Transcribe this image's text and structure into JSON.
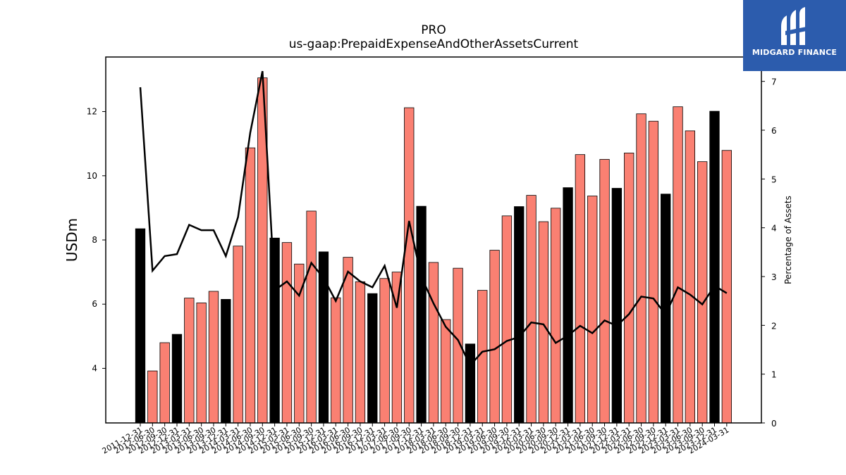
{
  "chart_data": {
    "type": "bar+line",
    "title": "PRO",
    "subtitle": "us-gaap:PrepaidExpenseAndOtherAssetsCurrent",
    "ylabel": "USDm",
    "y2label": "Percentage of Assets",
    "ylim": [
      2.3,
      13.7
    ],
    "y2lim": [
      0,
      7.5
    ],
    "yticks": [
      4,
      6,
      8,
      10,
      12
    ],
    "y2ticks": [
      0,
      1,
      2,
      3,
      4,
      5,
      6,
      7
    ],
    "categories": [
      "2011-12-31",
      "2012-06-30",
      "2012-09-30",
      "2012-12-31",
      "2013-03-31",
      "2013-06-30",
      "2013-09-30",
      "2013-12-31",
      "2014-03-31",
      "2014-06-30",
      "2014-09-30",
      "2014-12-31",
      "2015-03-31",
      "2015-06-30",
      "2015-09-30",
      "2015-12-31",
      "2016-03-31",
      "2016-06-30",
      "2016-09-30",
      "2016-12-31",
      "2017-03-31",
      "2017-06-30",
      "2017-09-30",
      "2017-12-31",
      "2018-03-31",
      "2018-06-30",
      "2018-09-30",
      "2018-12-31",
      "2019-03-31",
      "2019-06-30",
      "2019-09-30",
      "2019-12-31",
      "2020-03-31",
      "2020-06-30",
      "2020-09-30",
      "2020-12-31",
      "2021-03-31",
      "2021-06-30",
      "2021-09-30",
      "2021-12-31",
      "2022-03-31",
      "2022-06-30",
      "2022-09-30",
      "2022-12-31",
      "2023-03-31",
      "2023-06-30",
      "2023-09-30",
      "2023-12-31",
      "2024-03-31"
    ],
    "series": [
      {
        "type": "bar",
        "axis": "left",
        "values": [
          8.35,
          3.92,
          4.8,
          5.06,
          6.19,
          6.04,
          6.4,
          6.15,
          7.81,
          10.87,
          13.05,
          8.06,
          7.92,
          7.25,
          8.9,
          7.63,
          6.2,
          7.46,
          6.7,
          6.33,
          6.8,
          7.0,
          12.12,
          9.05,
          7.3,
          5.52,
          7.12,
          4.76,
          6.43,
          7.68,
          8.75,
          9.04,
          9.39,
          8.57,
          8.99,
          9.63,
          10.66,
          9.37,
          10.51,
          9.61,
          10.71,
          11.93,
          11.7,
          9.43,
          12.15,
          11.4,
          10.44,
          12.01,
          10.79
        ],
        "colors": [
          "#000000",
          "#fa8072",
          "#fa8072",
          "#000000",
          "#fa8072",
          "#fa8072",
          "#fa8072",
          "#000000",
          "#fa8072",
          "#fa8072",
          "#fa8072",
          "#000000",
          "#fa8072",
          "#fa8072",
          "#fa8072",
          "#000000",
          "#fa8072",
          "#fa8072",
          "#fa8072",
          "#000000",
          "#fa8072",
          "#fa8072",
          "#fa8072",
          "#000000",
          "#fa8072",
          "#fa8072",
          "#fa8072",
          "#000000",
          "#fa8072",
          "#fa8072",
          "#fa8072",
          "#000000",
          "#fa8072",
          "#fa8072",
          "#fa8072",
          "#000000",
          "#fa8072",
          "#fa8072",
          "#fa8072",
          "#000000",
          "#fa8072",
          "#fa8072",
          "#fa8072",
          "#000000",
          "#fa8072",
          "#fa8072",
          "#fa8072",
          "#000000",
          "#fa8072"
        ]
      },
      {
        "type": "line",
        "axis": "right",
        "color": "#000000",
        "values": [
          6.88,
          3.12,
          3.42,
          3.46,
          4.06,
          3.95,
          3.95,
          3.42,
          4.22,
          5.95,
          7.21,
          2.72,
          2.9,
          2.61,
          3.28,
          2.97,
          2.5,
          3.1,
          2.9,
          2.78,
          3.22,
          2.36,
          4.14,
          2.99,
          2.45,
          1.97,
          1.7,
          1.18,
          1.46,
          1.51,
          1.68,
          1.76,
          2.06,
          2.02,
          1.64,
          1.79,
          1.99,
          1.84,
          2.1,
          1.99,
          2.23,
          2.59,
          2.55,
          2.22,
          2.78,
          2.63,
          2.43,
          2.81,
          2.66
        ]
      }
    ],
    "legend": "none",
    "grid": false
  },
  "logo": {
    "text": "MIDGARD FINANCE",
    "background": "#2c5cad"
  }
}
